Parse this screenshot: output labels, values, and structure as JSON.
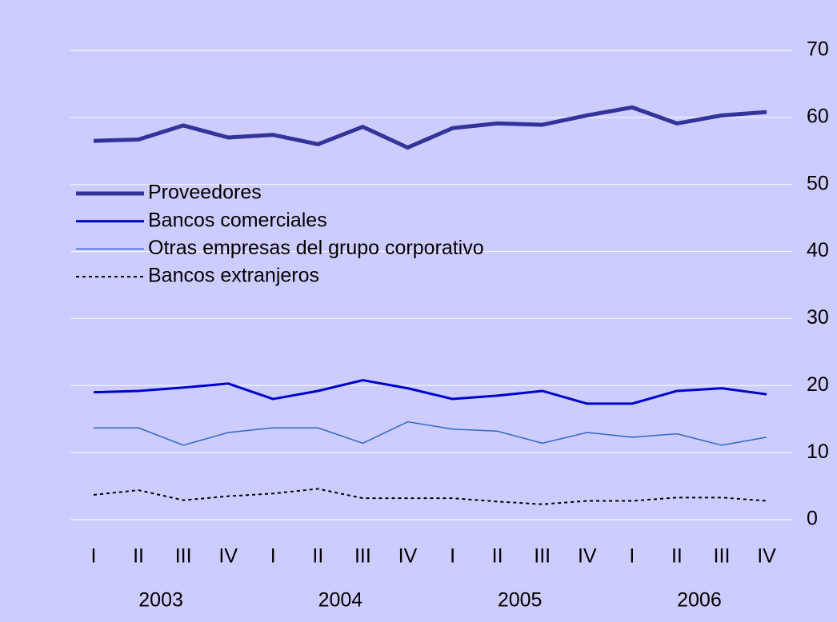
{
  "chart_data": {
    "type": "line",
    "categories": [
      "I",
      "II",
      "III",
      "IV",
      "I",
      "II",
      "III",
      "IV",
      "I",
      "II",
      "III",
      "IV",
      "I",
      "II",
      "III",
      "IV"
    ],
    "groups": [
      "2003",
      "2004",
      "2005",
      "2006"
    ],
    "series": [
      {
        "name": "Proveedores",
        "color": "#333399",
        "width": 5,
        "dashed": false,
        "values": [
          56.5,
          56.7,
          58.8,
          57.0,
          57.4,
          56.0,
          58.6,
          55.5,
          58.4,
          59.1,
          58.9,
          60.3,
          61.5,
          59.1,
          60.3,
          60.8
        ]
      },
      {
        "name": "Bancos comerciales",
        "color": "#0000cc",
        "width": 3,
        "dashed": false,
        "values": [
          19.0,
          19.2,
          19.7,
          20.3,
          18.0,
          19.2,
          20.8,
          19.6,
          18.0,
          18.5,
          19.2,
          17.3,
          17.3,
          19.2,
          19.6,
          18.7
        ]
      },
      {
        "name": "Otras empresas del grupo corporativo",
        "color": "#3366cc",
        "width": 1.5,
        "dashed": false,
        "values": [
          13.7,
          13.7,
          11.1,
          13.0,
          13.7,
          13.7,
          11.4,
          14.6,
          13.5,
          13.2,
          11.4,
          13.0,
          12.3,
          12.8,
          11.1,
          12.3
        ]
      },
      {
        "name": "Bancos extranjeros",
        "color": "#000000",
        "width": 2,
        "dashed": true,
        "values": [
          3.7,
          4.4,
          2.9,
          3.5,
          3.9,
          4.6,
          3.2,
          3.2,
          3.2,
          2.7,
          2.3,
          2.8,
          2.8,
          3.3,
          3.3,
          2.8
        ]
      }
    ],
    "ylim": [
      0,
      70
    ],
    "yticks": [
      0,
      10,
      20,
      30,
      40,
      50,
      60,
      70
    ],
    "grid": true,
    "legend": "left"
  }
}
